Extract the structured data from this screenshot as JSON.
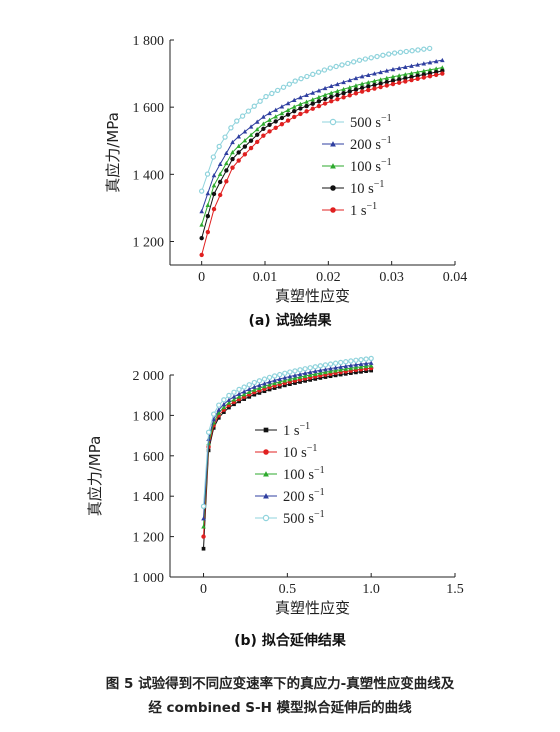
{
  "caption": {
    "line1": "图 5   试验得到不同应变速率下的真应力-真塑性应变曲线及",
    "line2": "经 combined S-H 模型拟合延伸后的曲线"
  },
  "chart_data": [
    {
      "type": "line",
      "panel_label": "(a) 试验结果",
      "xlabel": "真塑性应变",
      "ylabel": "真应力/MPa",
      "xlim": [
        -0.005,
        0.04
      ],
      "ylim": [
        1130,
        1800
      ],
      "x_ticks": [
        "0",
        "0.01",
        "0.02",
        "0.03",
        "0.04"
      ],
      "y_ticks": [
        "1 200",
        "1 400",
        "1 600",
        "1 800"
      ],
      "legend_position": "center-right",
      "series": [
        {
          "name": "500 s",
          "rate_exponent": "−1",
          "color": "#8fd3dc",
          "marker": "open-circle",
          "x": [
            0,
            0.002,
            0.005,
            0.01,
            0.015,
            0.02,
            0.025,
            0.03,
            0.036
          ],
          "values": [
            1350,
            1460,
            1550,
            1630,
            1680,
            1715,
            1740,
            1760,
            1775
          ]
        },
        {
          "name": "200 s",
          "rate_exponent": "−1",
          "color": "#2f3fa0",
          "marker": "triangle",
          "x": [
            0,
            0.002,
            0.005,
            0.01,
            0.015,
            0.02,
            0.025,
            0.03,
            0.038
          ],
          "values": [
            1290,
            1400,
            1500,
            1575,
            1625,
            1660,
            1690,
            1712,
            1740
          ]
        },
        {
          "name": "100 s",
          "rate_exponent": "−1",
          "color": "#2eaa2e",
          "marker": "triangle",
          "x": [
            0,
            0.002,
            0.005,
            0.01,
            0.015,
            0.02,
            0.025,
            0.03,
            0.038
          ],
          "values": [
            1250,
            1370,
            1470,
            1555,
            1605,
            1640,
            1668,
            1690,
            1718
          ]
        },
        {
          "name": "10 s",
          "rate_exponent": "−1",
          "color": "#111111",
          "marker": "dot",
          "x": [
            0,
            0.002,
            0.005,
            0.01,
            0.015,
            0.02,
            0.025,
            0.03,
            0.038
          ],
          "values": [
            1210,
            1345,
            1450,
            1540,
            1592,
            1628,
            1656,
            1678,
            1708
          ]
        },
        {
          "name": "1 s",
          "rate_exponent": "−1",
          "color": "#e02020",
          "marker": "dot",
          "x": [
            0,
            0.002,
            0.005,
            0.01,
            0.015,
            0.02,
            0.025,
            0.03,
            0.038
          ],
          "values": [
            1160,
            1300,
            1425,
            1520,
            1575,
            1615,
            1645,
            1668,
            1700
          ]
        }
      ]
    },
    {
      "type": "line",
      "panel_label": "(b) 拟合延伸结果",
      "xlabel": "真塑性应变",
      "ylabel": "真应力/MPa",
      "xlim": [
        -0.2,
        1.5
      ],
      "ylim": [
        1000,
        2000
      ],
      "x_ticks": [
        "0",
        "0.5",
        "1.0",
        "1.5"
      ],
      "y_ticks": [
        "1 000",
        "1 200",
        "1 400",
        "1 600",
        "1 800",
        "2 000"
      ],
      "legend_position": "center",
      "series": [
        {
          "name": "1 s",
          "rate_exponent": "−1",
          "color": "#111111",
          "marker": "square",
          "x": [
            0,
            0.01,
            0.02,
            0.04,
            0.07,
            0.1,
            0.15,
            0.2,
            0.3,
            0.4,
            0.5,
            0.6,
            0.7,
            0.8,
            0.9,
            1.0
          ],
          "values": [
            1140,
            1420,
            1560,
            1690,
            1760,
            1800,
            1838,
            1865,
            1902,
            1930,
            1952,
            1970,
            1986,
            2000,
            2012,
            2022
          ]
        },
        {
          "name": "10 s",
          "rate_exponent": "−1",
          "color": "#e02020",
          "marker": "dot",
          "x": [
            0,
            0.01,
            0.02,
            0.04,
            0.07,
            0.1,
            0.15,
            0.2,
            0.3,
            0.4,
            0.5,
            0.6,
            0.7,
            0.8,
            0.9,
            1.0
          ],
          "values": [
            1200,
            1450,
            1580,
            1705,
            1772,
            1812,
            1850,
            1876,
            1914,
            1942,
            1964,
            1982,
            1998,
            2012,
            2024,
            2034
          ]
        },
        {
          "name": "100 s",
          "rate_exponent": "−1",
          "color": "#2eaa2e",
          "marker": "triangle",
          "x": [
            0,
            0.01,
            0.02,
            0.04,
            0.07,
            0.1,
            0.15,
            0.2,
            0.3,
            0.4,
            0.5,
            0.6,
            0.7,
            0.8,
            0.9,
            1.0
          ],
          "values": [
            1250,
            1480,
            1600,
            1720,
            1785,
            1825,
            1862,
            1888,
            1926,
            1954,
            1976,
            1994,
            2010,
            2024,
            2036,
            2046
          ]
        },
        {
          "name": "200 s",
          "rate_exponent": "−1",
          "color": "#2f3fa0",
          "marker": "triangle",
          "x": [
            0,
            0.01,
            0.02,
            0.04,
            0.07,
            0.1,
            0.15,
            0.2,
            0.3,
            0.4,
            0.5,
            0.6,
            0.7,
            0.8,
            0.9,
            1.0
          ],
          "values": [
            1290,
            1510,
            1625,
            1738,
            1800,
            1840,
            1876,
            1902,
            1940,
            1968,
            1990,
            2008,
            2024,
            2038,
            2050,
            2060
          ]
        },
        {
          "name": "500 s",
          "rate_exponent": "−1",
          "color": "#8fd3dc",
          "marker": "open-circle",
          "x": [
            0,
            0.01,
            0.02,
            0.04,
            0.07,
            0.1,
            0.15,
            0.2,
            0.3,
            0.4,
            0.5,
            0.6,
            0.7,
            0.8,
            0.9,
            1.0
          ],
          "values": [
            1350,
            1560,
            1665,
            1765,
            1825,
            1862,
            1898,
            1924,
            1962,
            1990,
            2012,
            2030,
            2046,
            2060,
            2072,
            2082
          ]
        }
      ]
    }
  ]
}
